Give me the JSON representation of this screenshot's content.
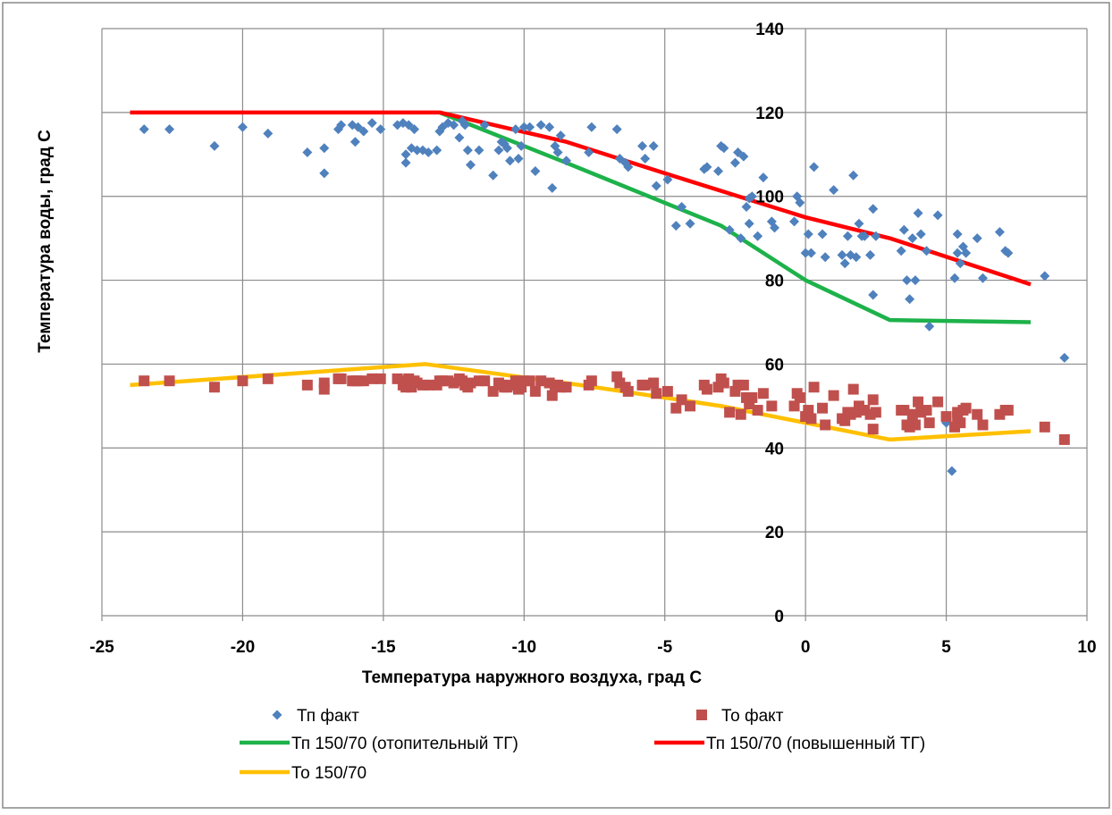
{
  "chart_data": {
    "type": "scatter",
    "title": "",
    "xlabel": "Температура наружного воздуха, град С",
    "ylabel": "Температура воды, град С",
    "xlim": [
      -25,
      10
    ],
    "ylim": [
      0,
      140
    ],
    "x_ticks": [
      -25,
      -20,
      -15,
      -10,
      -5,
      0,
      5,
      10
    ],
    "y_ticks": [
      0,
      20,
      40,
      60,
      80,
      100,
      120,
      140
    ],
    "x_tick_labels": [
      "-25",
      "-20",
      "-15",
      "-10",
      "-5",
      "0",
      "5",
      "10"
    ],
    "y_tick_labels": [
      "0",
      "20",
      "40",
      "60",
      "80",
      "100",
      "120",
      "140"
    ],
    "grid": true,
    "legend_position": "bottom",
    "series": [
      {
        "name": "Тп факт",
        "kind": "scatter",
        "marker": "diamond",
        "color": "#4F81BD",
        "points": [
          [
            -23.5,
            116
          ],
          [
            -22.6,
            116
          ],
          [
            -21,
            112
          ],
          [
            -20,
            116.5
          ],
          [
            -19.1,
            115
          ],
          [
            -17.7,
            110.5
          ],
          [
            -17.1,
            111.5
          ],
          [
            -17.1,
            105.5
          ],
          [
            -16.6,
            116
          ],
          [
            -16.5,
            117
          ],
          [
            -16.1,
            117
          ],
          [
            -16,
            113
          ],
          [
            -15.9,
            116.5
          ],
          [
            -15.7,
            115.5
          ],
          [
            -15.4,
            117.5
          ],
          [
            -15.1,
            116
          ],
          [
            -14.5,
            117
          ],
          [
            -14.3,
            117.5
          ],
          [
            -14.2,
            110
          ],
          [
            -14.2,
            108
          ],
          [
            -14.1,
            117
          ],
          [
            -14,
            111.5
          ],
          [
            -13.9,
            116
          ],
          [
            -13.8,
            111
          ],
          [
            -13.6,
            111
          ],
          [
            -13.4,
            110.5
          ],
          [
            -13.1,
            111
          ],
          [
            -13,
            115.5
          ],
          [
            -12.9,
            116.5
          ],
          [
            -12.7,
            117.5
          ],
          [
            -12.5,
            117
          ],
          [
            -12.3,
            114
          ],
          [
            -12.2,
            118
          ],
          [
            -12.1,
            117
          ],
          [
            -12,
            111
          ],
          [
            -11.9,
            107.5
          ],
          [
            -11.6,
            111
          ],
          [
            -11.4,
            117
          ],
          [
            -11.1,
            105
          ],
          [
            -10.9,
            111
          ],
          [
            -10.8,
            113
          ],
          [
            -10.7,
            112.5
          ],
          [
            -10.6,
            111.5
          ],
          [
            -10.5,
            108.5
          ],
          [
            -10.3,
            116
          ],
          [
            -10.2,
            109
          ],
          [
            -10.1,
            112
          ],
          [
            -10,
            116.5
          ],
          [
            -9.8,
            116.5
          ],
          [
            -9.6,
            106
          ],
          [
            -9.4,
            117
          ],
          [
            -9.1,
            116.5
          ],
          [
            -9,
            102
          ],
          [
            -8.9,
            112
          ],
          [
            -8.8,
            110.5
          ],
          [
            -8.7,
            114.5
          ],
          [
            -8.5,
            108.5
          ],
          [
            -7.7,
            110.5
          ],
          [
            -7.6,
            116.5
          ],
          [
            -6.7,
            116
          ],
          [
            -6.6,
            109
          ],
          [
            -6.4,
            108
          ],
          [
            -6.3,
            107
          ],
          [
            -5.8,
            112
          ],
          [
            -5.7,
            109
          ],
          [
            -5.4,
            112
          ],
          [
            -5.3,
            102.5
          ],
          [
            -4.9,
            104
          ],
          [
            -4.6,
            93
          ],
          [
            -4.4,
            97.5
          ],
          [
            -4.1,
            93.5
          ],
          [
            -3.6,
            106.5
          ],
          [
            -3.5,
            107
          ],
          [
            -3.1,
            106
          ],
          [
            -3,
            112
          ],
          [
            -2.9,
            111.5
          ],
          [
            -2.7,
            92
          ],
          [
            -2.5,
            108
          ],
          [
            -2.4,
            110.5
          ],
          [
            -2.3,
            90
          ],
          [
            -2.2,
            109.5
          ],
          [
            -2.1,
            97.5
          ],
          [
            -2,
            99.5
          ],
          [
            -2,
            93.5
          ],
          [
            -1.9,
            100
          ],
          [
            -1.7,
            90.5
          ],
          [
            -1.5,
            104.5
          ],
          [
            -1.2,
            94
          ],
          [
            -1.1,
            92.5
          ],
          [
            -0.4,
            94
          ],
          [
            -0.3,
            100
          ],
          [
            -0.2,
            98.5
          ],
          [
            0,
            86.5
          ],
          [
            0.1,
            91
          ],
          [
            0.2,
            86.5
          ],
          [
            0.3,
            107
          ],
          [
            0.6,
            91
          ],
          [
            0.7,
            85.5
          ],
          [
            1,
            101.5
          ],
          [
            1.3,
            86
          ],
          [
            1.4,
            84
          ],
          [
            1.5,
            90.5
          ],
          [
            1.6,
            86
          ],
          [
            1.7,
            105
          ],
          [
            1.8,
            85.5
          ],
          [
            1.9,
            93.5
          ],
          [
            2,
            90.5
          ],
          [
            2.1,
            90.5
          ],
          [
            2.3,
            86
          ],
          [
            2.4,
            76.5
          ],
          [
            2.4,
            97
          ],
          [
            2.5,
            90.5
          ],
          [
            3.4,
            87
          ],
          [
            3.5,
            92
          ],
          [
            3.6,
            80
          ],
          [
            3.7,
            75.5
          ],
          [
            3.8,
            90
          ],
          [
            3.9,
            80
          ],
          [
            4,
            96
          ],
          [
            4.1,
            91
          ],
          [
            4.3,
            87
          ],
          [
            4.4,
            69
          ],
          [
            4.7,
            95.5
          ],
          [
            5,
            46
          ],
          [
            5.2,
            34.5
          ],
          [
            5.3,
            80.5
          ],
          [
            5.4,
            86.5
          ],
          [
            5.4,
            91
          ],
          [
            5.5,
            84
          ],
          [
            5.6,
            88
          ],
          [
            5.7,
            86.5
          ],
          [
            6.1,
            90
          ],
          [
            6.3,
            80.5
          ],
          [
            6.9,
            91.5
          ],
          [
            7.1,
            87
          ],
          [
            7.2,
            86.5
          ],
          [
            8.5,
            81
          ],
          [
            9.2,
            61.5
          ]
        ]
      },
      {
        "name": "То факт",
        "kind": "scatter",
        "marker": "square",
        "color": "#C0504D",
        "points": [
          [
            -23.5,
            56
          ],
          [
            -22.6,
            56
          ],
          [
            -21,
            54.5
          ],
          [
            -20,
            56
          ],
          [
            -19.1,
            56.5
          ],
          [
            -17.7,
            55
          ],
          [
            -17.1,
            55.5
          ],
          [
            -17.1,
            54
          ],
          [
            -16.6,
            56.5
          ],
          [
            -16.5,
            56.5
          ],
          [
            -16.1,
            56
          ],
          [
            -16,
            56
          ],
          [
            -15.9,
            56
          ],
          [
            -15.7,
            56
          ],
          [
            -15.4,
            56.5
          ],
          [
            -15.1,
            56.5
          ],
          [
            -14.5,
            56.5
          ],
          [
            -14.3,
            55
          ],
          [
            -14.2,
            56
          ],
          [
            -14.2,
            54.5
          ],
          [
            -14.1,
            56.5
          ],
          [
            -14,
            54.5
          ],
          [
            -13.9,
            56
          ],
          [
            -13.8,
            55.5
          ],
          [
            -13.6,
            55
          ],
          [
            -13.4,
            55
          ],
          [
            -13.1,
            55
          ],
          [
            -13,
            56
          ],
          [
            -12.9,
            56
          ],
          [
            -12.7,
            56
          ],
          [
            -12.5,
            55.5
          ],
          [
            -12.3,
            56.5
          ],
          [
            -12.2,
            56
          ],
          [
            -12.1,
            55
          ],
          [
            -12,
            54.5
          ],
          [
            -11.9,
            55.5
          ],
          [
            -11.6,
            56
          ],
          [
            -11.4,
            56
          ],
          [
            -11.1,
            53.5
          ],
          [
            -10.9,
            55.5
          ],
          [
            -10.8,
            55
          ],
          [
            -10.7,
            54.5
          ],
          [
            -10.6,
            54.5
          ],
          [
            -10.5,
            55
          ],
          [
            -10.3,
            56
          ],
          [
            -10.2,
            54
          ],
          [
            -10.1,
            54.5
          ],
          [
            -10,
            56
          ],
          [
            -9.8,
            56
          ],
          [
            -9.6,
            53.5
          ],
          [
            -9.4,
            56
          ],
          [
            -9.1,
            55.5
          ],
          [
            -9,
            52.5
          ],
          [
            -8.9,
            55
          ],
          [
            -8.8,
            55
          ],
          [
            -8.7,
            54.5
          ],
          [
            -8.5,
            54.5
          ],
          [
            -7.7,
            55
          ],
          [
            -7.6,
            56
          ],
          [
            -6.7,
            57
          ],
          [
            -6.6,
            55.5
          ],
          [
            -6.4,
            54.5
          ],
          [
            -6.3,
            53.5
          ],
          [
            -5.8,
            55
          ],
          [
            -5.7,
            55
          ],
          [
            -5.4,
            55.5
          ],
          [
            -5.3,
            53
          ],
          [
            -4.9,
            53.5
          ],
          [
            -4.6,
            49.5
          ],
          [
            -4.4,
            51.5
          ],
          [
            -4.1,
            50
          ],
          [
            -3.6,
            55
          ],
          [
            -3.5,
            54
          ],
          [
            -3.1,
            54.5
          ],
          [
            -3,
            56.5
          ],
          [
            -2.9,
            55.5
          ],
          [
            -2.7,
            48.5
          ],
          [
            -2.5,
            53.5
          ],
          [
            -2.4,
            55
          ],
          [
            -2.3,
            48
          ],
          [
            -2.2,
            55
          ],
          [
            -2.1,
            52
          ],
          [
            -2,
            50.5
          ],
          [
            -2,
            52
          ],
          [
            -1.9,
            52
          ],
          [
            -1.7,
            49
          ],
          [
            -1.5,
            53
          ],
          [
            -1.2,
            50
          ],
          [
            -0.4,
            50
          ],
          [
            -0.3,
            53
          ],
          [
            -0.2,
            52
          ],
          [
            0,
            47.5
          ],
          [
            0.1,
            49
          ],
          [
            0.2,
            47
          ],
          [
            0.3,
            54.5
          ],
          [
            0.6,
            49.5
          ],
          [
            0.7,
            45.5
          ],
          [
            1,
            52.5
          ],
          [
            1.3,
            47
          ],
          [
            1.4,
            46.5
          ],
          [
            1.5,
            48.5
          ],
          [
            1.6,
            48
          ],
          [
            1.7,
            54
          ],
          [
            1.8,
            48.5
          ],
          [
            1.9,
            50
          ],
          [
            2,
            49
          ],
          [
            2.1,
            49
          ],
          [
            2.3,
            48
          ],
          [
            2.4,
            44.5
          ],
          [
            2.4,
            51.5
          ],
          [
            2.5,
            48.5
          ],
          [
            3.4,
            49
          ],
          [
            3.5,
            49
          ],
          [
            3.6,
            45.5
          ],
          [
            3.7,
            45
          ],
          [
            3.8,
            48
          ],
          [
            3.9,
            45.5
          ],
          [
            4,
            51
          ],
          [
            4.1,
            48.5
          ],
          [
            4.3,
            49
          ],
          [
            4.4,
            46
          ],
          [
            4.7,
            51
          ],
          [
            5,
            47.5
          ],
          [
            5.3,
            45
          ],
          [
            5.4,
            47.5
          ],
          [
            5.4,
            48.5
          ],
          [
            5.5,
            46
          ],
          [
            5.6,
            49
          ],
          [
            5.7,
            49.5
          ],
          [
            6.1,
            48
          ],
          [
            6.3,
            45.5
          ],
          [
            6.9,
            48
          ],
          [
            7.1,
            49
          ],
          [
            7.2,
            49
          ],
          [
            8.5,
            45
          ],
          [
            9.2,
            42
          ]
        ]
      },
      {
        "name": "Тп 150/70 (отопительный ТГ)",
        "kind": "line",
        "color": "#1DB24A",
        "points": [
          [
            -13,
            120
          ],
          [
            -8.5,
            108
          ],
          [
            -3,
            93
          ],
          [
            0,
            80
          ],
          [
            3,
            70.5
          ],
          [
            8,
            70
          ]
        ]
      },
      {
        "name": "Тп 150/70 (повышенный ТГ)",
        "kind": "line",
        "color": "#FF0000",
        "points": [
          [
            -24,
            120
          ],
          [
            -13,
            120
          ],
          [
            -8.5,
            113
          ],
          [
            -5,
            105.5
          ],
          [
            0,
            95
          ],
          [
            3,
            90
          ],
          [
            8,
            79
          ]
        ]
      },
      {
        "name": "То 150/70",
        "kind": "line",
        "color": "#FFC000",
        "points": [
          [
            -24,
            55
          ],
          [
            -13.5,
            60
          ],
          [
            -8,
            55
          ],
          [
            -3,
            50
          ],
          [
            3,
            42
          ],
          [
            8,
            44
          ]
        ]
      }
    ]
  }
}
